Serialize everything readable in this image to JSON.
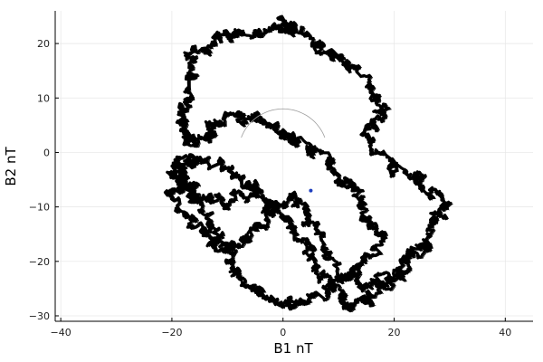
{
  "chart_data": {
    "type": "scatter",
    "title": "",
    "xlabel": "B1 nT",
    "ylabel": "B2 nT",
    "xlim": [
      -41,
      45
    ],
    "ylim": [
      -31,
      26
    ],
    "xticks": [
      -40,
      -20,
      0,
      20,
      40
    ],
    "yticks": [
      -30,
      -20,
      -10,
      0,
      10,
      20
    ],
    "grid": true,
    "legend": "none",
    "colors": {
      "trace": "#000000",
      "arc": "#a0a0a0",
      "marker": "#1f3fbf"
    },
    "series": [
      {
        "style": "dense random-walk trace",
        "points": [
          [
            -5,
            -6
          ],
          [
            -10,
            -10
          ],
          [
            -15,
            -8
          ],
          [
            -18,
            -4
          ],
          [
            -20,
            -7
          ],
          [
            -15,
            -14
          ],
          [
            -11,
            -18
          ],
          [
            -6,
            -15
          ],
          [
            -3,
            -10
          ],
          [
            2,
            -8
          ],
          [
            6,
            -14
          ],
          [
            10,
            -22
          ],
          [
            15,
            -25
          ],
          [
            22,
            -22
          ],
          [
            26,
            -14
          ],
          [
            29,
            -10
          ],
          [
            25,
            -5
          ],
          [
            20,
            -3
          ],
          [
            15,
            3
          ],
          [
            18,
            8
          ],
          [
            14,
            14
          ],
          [
            10,
            18
          ],
          [
            3,
            22
          ],
          [
            0,
            24
          ],
          [
            -5,
            22
          ],
          [
            -12,
            21
          ],
          [
            -16,
            18
          ],
          [
            -17,
            12
          ],
          [
            -18,
            6
          ],
          [
            -17,
            2
          ],
          [
            -13,
            4
          ],
          [
            -8,
            7
          ],
          [
            -3,
            5
          ],
          [
            3,
            2
          ],
          [
            8,
            -2
          ],
          [
            12,
            -6
          ],
          [
            15,
            -10
          ],
          [
            18,
            -16
          ],
          [
            13,
            -21
          ],
          [
            6,
            -26
          ],
          [
            0,
            -28
          ],
          [
            -5,
            -26
          ],
          [
            -9,
            -22
          ],
          [
            -12,
            -14
          ],
          [
            -16,
            -8
          ],
          [
            -20,
            -4
          ],
          [
            -18,
            -1
          ],
          [
            -12,
            -2
          ],
          [
            -6,
            -6
          ],
          [
            0,
            -12
          ],
          [
            5,
            -18
          ],
          [
            8,
            -24
          ],
          [
            12,
            -28
          ],
          [
            17,
            -26
          ],
          [
            22,
            -20
          ],
          [
            27,
            -16
          ]
        ]
      }
    ],
    "annotations": {
      "gray_arc": {
        "center": [
          0,
          0
        ],
        "radius": 8,
        "from_deg": 20,
        "to_deg": 160
      },
      "marker": [
        5,
        -7
      ]
    }
  }
}
